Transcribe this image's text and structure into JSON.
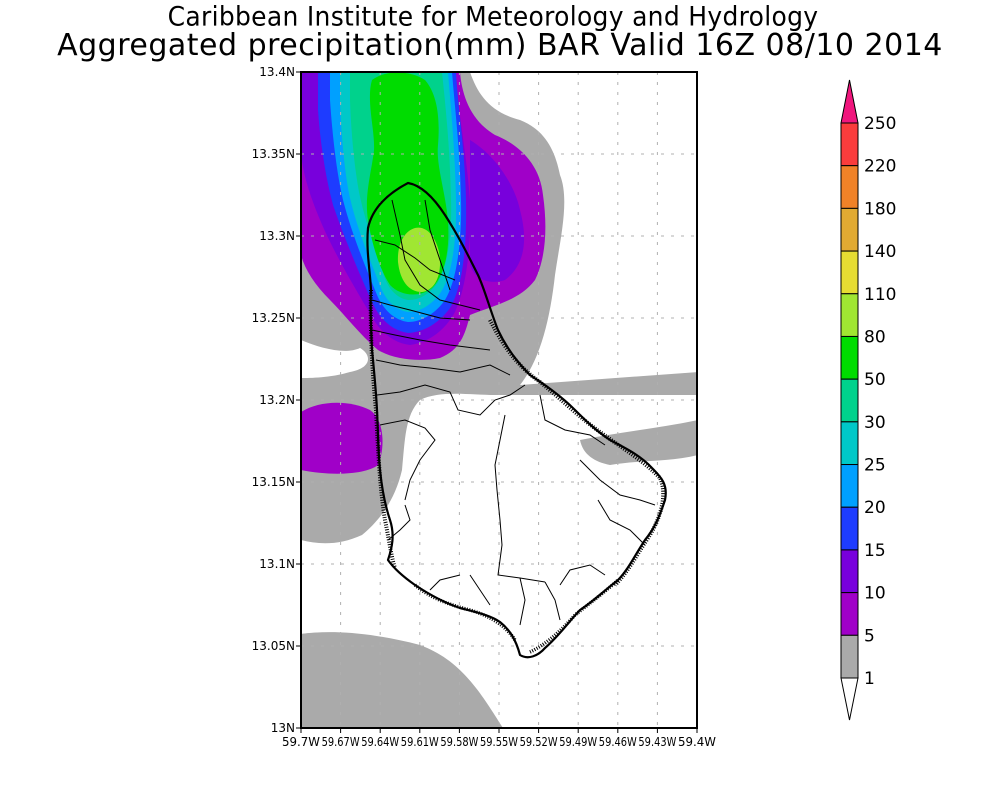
{
  "header": {
    "title_line1": "Caribbean Institute for Meteorology and Hydrology",
    "title_line2": "Aggregated precipitation(mm) BAR Valid 16Z 08/10 2014"
  },
  "map": {
    "region": "Barbados",
    "lon_range": [
      -59.7,
      -59.4
    ],
    "lat_range": [
      13.0,
      13.4
    ],
    "lat_ticks": [
      "13.4N",
      "13.35N",
      "13.3N",
      "13.25N",
      "13.2N",
      "13.15N",
      "13.1N",
      "13.05N",
      "13N"
    ],
    "lat_tick_values": [
      13.4,
      13.35,
      13.3,
      13.25,
      13.2,
      13.15,
      13.1,
      13.05,
      13.0
    ],
    "lon_ticks": [
      "59.7W",
      "59.67W",
      "59.64W",
      "59.61W",
      "59.58W",
      "59.55W",
      "59.52W",
      "59.49W",
      "59.46W",
      "59.43W",
      "59.4W"
    ],
    "lon_tick_values": [
      -59.7,
      -59.67,
      -59.64,
      -59.61,
      -59.58,
      -59.55,
      -59.52,
      -59.49,
      -59.46,
      -59.43,
      -59.4
    ],
    "grid": "dashed"
  },
  "colorbar": {
    "labels": [
      "250",
      "220",
      "180",
      "140",
      "110",
      "80",
      "50",
      "30",
      "25",
      "20",
      "15",
      "10",
      "5",
      "1"
    ],
    "colors": [
      "#f0167d",
      "#fa3c3c",
      "#f08228",
      "#e1aa32",
      "#e6dc32",
      "#a0e632",
      "#00dc00",
      "#00d28c",
      "#00c8c8",
      "#00a0ff",
      "#1e3cff",
      "#7800dc",
      "#a000c8",
      "#aaaaaa",
      "#ffffff"
    ],
    "color_order": "top-to-bottom; first = overflow triangle (>250), last = underflow triangle (<1)"
  }
}
